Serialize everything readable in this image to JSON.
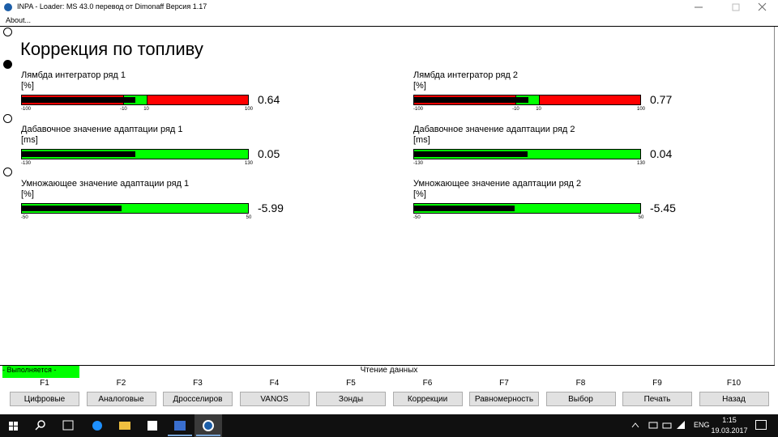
{
  "window": {
    "title": "INPA - Loader:  MS 43.0 перевод от Dimonaff Версия 1.17",
    "menu": [
      "About..."
    ]
  },
  "page": {
    "title": "Коррекция по топливу"
  },
  "gauges": [
    {
      "label": "Лямбда интегратор ряд 1",
      "unit": "[%]",
      "min": -100,
      "max": 100,
      "ticks": [
        -10,
        10
      ],
      "value": 0.64
    },
    {
      "label": "Лямбда интегратор ряд 2",
      "unit": "[%]",
      "min": -100,
      "max": 100,
      "ticks": [
        -10,
        10
      ],
      "value": 0.77
    },
    {
      "label": "Дабавочное значение адаптации ряд 1",
      "unit": "[ms]",
      "min": -130,
      "max": 130,
      "value": 0.05
    },
    {
      "label": "Дабавочное значение адаптации ряд 2",
      "unit": "[ms]",
      "min": -130,
      "max": 130,
      "value": 0.04
    },
    {
      "label": "Умножающее значение адаптации ряд 1",
      "unit": "[%]",
      "min": -50,
      "max": 50,
      "value": -5.99
    },
    {
      "label": "Умножающее значение адаптации ряд 2",
      "unit": "[%]",
      "min": -50,
      "max": 50,
      "value": -5.45
    }
  ],
  "status": {
    "state": "- Выполняется -",
    "message": "Чтение данных"
  },
  "function_keys": [
    {
      "key": "F1",
      "label": "Цифровые"
    },
    {
      "key": "F2",
      "label": "Аналоговые"
    },
    {
      "key": "F3",
      "label": "Дросселиров"
    },
    {
      "key": "F4",
      "label": "VANOS"
    },
    {
      "key": "F5",
      "label": "Зонды"
    },
    {
      "key": "F6",
      "label": "Коррекции"
    },
    {
      "key": "F7",
      "label": "Равномерность"
    },
    {
      "key": "F8",
      "label": "Выбор"
    },
    {
      "key": "F9",
      "label": "Печать"
    },
    {
      "key": "F10",
      "label": "Назад"
    }
  ],
  "taskbar": {
    "language": "ENG",
    "time": "1:15",
    "date": "19.03.2017"
  }
}
